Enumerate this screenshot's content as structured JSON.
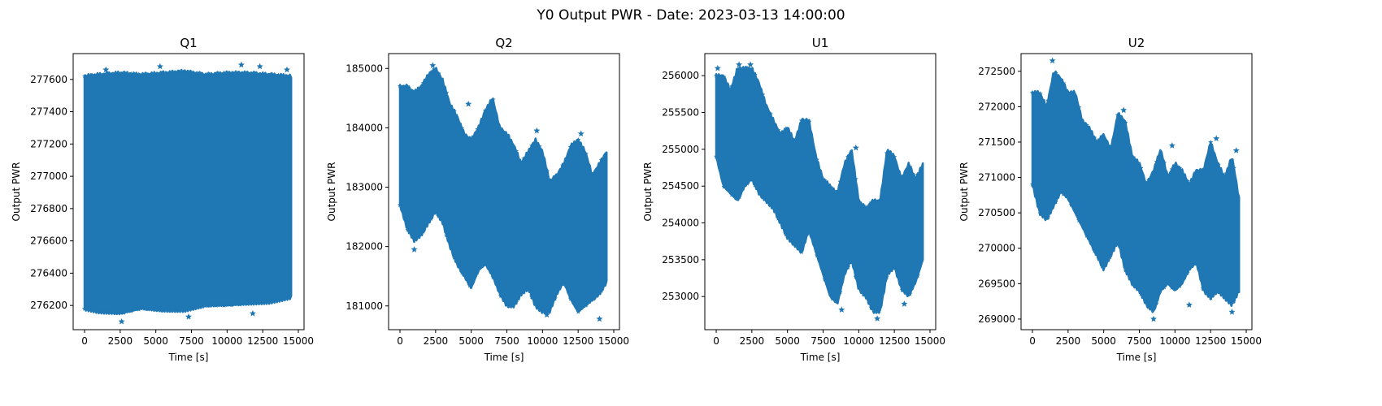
{
  "figure": {
    "suptitle": "Y0 Output PWR - Date: 2023-03-13 14:00:00",
    "series_color": "#1f77b4"
  },
  "chart_data": [
    {
      "type": "scatter",
      "marker": "star",
      "title": "Q1",
      "xlabel": "Time [s]",
      "ylabel": "Output PWR",
      "xlim": [
        -800,
        15400
      ],
      "ylim": [
        276050,
        277760
      ],
      "xticks": [
        0,
        2500,
        5000,
        7500,
        10000,
        12500,
        15000
      ],
      "yticks": [
        276200,
        276400,
        276600,
        276800,
        277000,
        277200,
        277400,
        277600
      ],
      "x_range": [
        0,
        14500
      ],
      "envelope": {
        "t": [
          0,
          1000,
          2500,
          4000,
          5500,
          7000,
          8500,
          10000,
          11500,
          13000,
          14500
        ],
        "upper": [
          277620,
          277630,
          277640,
          277630,
          277640,
          277650,
          277630,
          277640,
          277640,
          277630,
          277620
        ],
        "lower": [
          276180,
          276160,
          276150,
          276180,
          276170,
          276170,
          276200,
          276200,
          276210,
          276220,
          276250
        ]
      },
      "outliers_high": [
        [
          1500,
          277660
        ],
        [
          5300,
          277680
        ],
        [
          11000,
          277690
        ],
        [
          12300,
          277680
        ],
        [
          14200,
          277660
        ]
      ],
      "outliers_low": [
        [
          2600,
          276100
        ],
        [
          7300,
          276130
        ],
        [
          11800,
          276150
        ]
      ]
    },
    {
      "type": "scatter",
      "marker": "star",
      "title": "Q2",
      "xlabel": "Time [s]",
      "ylabel": "Output PWR",
      "xlim": [
        -800,
        15400
      ],
      "ylim": [
        180600,
        185250
      ],
      "xticks": [
        0,
        2500,
        5000,
        7500,
        10000,
        12500,
        15000
      ],
      "yticks": [
        181000,
        182000,
        183000,
        184000,
        185000
      ],
      "x_range": [
        0,
        14500
      ],
      "envelope": {
        "t": [
          0,
          500,
          1000,
          1500,
          2000,
          2500,
          3000,
          3500,
          4000,
          4500,
          5000,
          5500,
          6000,
          6500,
          7000,
          7500,
          8000,
          8500,
          9000,
          9500,
          10000,
          10500,
          11000,
          11500,
          12000,
          12500,
          13000,
          13500,
          14000,
          14500
        ],
        "upper": [
          184700,
          184700,
          184600,
          184700,
          184900,
          185000,
          184800,
          184400,
          184200,
          183900,
          183800,
          184000,
          184300,
          184500,
          184000,
          183900,
          183700,
          183400,
          183600,
          183800,
          183600,
          183100,
          183200,
          183400,
          183700,
          183800,
          183600,
          183200,
          183400,
          183600
        ],
        "lower": [
          182700,
          182300,
          182100,
          182200,
          182400,
          182600,
          182400,
          182000,
          181700,
          181500,
          181300,
          181600,
          181700,
          181500,
          181200,
          181000,
          181000,
          181200,
          181300,
          181000,
          180900,
          180900,
          181200,
          181400,
          181100,
          180900,
          181000,
          181100,
          181200,
          181400
        ]
      },
      "outliers_high": [
        [
          2300,
          185050
        ],
        [
          4800,
          184400
        ],
        [
          9600,
          183950
        ],
        [
          12700,
          183900
        ]
      ],
      "outliers_low": [
        [
          1000,
          181950
        ],
        [
          10300,
          180850
        ],
        [
          14000,
          180780
        ]
      ]
    },
    {
      "type": "scatter",
      "marker": "star",
      "title": "U1",
      "xlabel": "Time [s]",
      "ylabel": "Output PWR",
      "xlim": [
        -800,
        15400
      ],
      "ylim": [
        252550,
        256300
      ],
      "xticks": [
        0,
        2500,
        5000,
        7500,
        10000,
        12500,
        15000
      ],
      "yticks": [
        253000,
        253500,
        254000,
        254500,
        255000,
        255500,
        256000
      ],
      "x_range": [
        0,
        14500
      ],
      "envelope": {
        "t": [
          0,
          500,
          1000,
          1500,
          2000,
          2500,
          3000,
          3500,
          4000,
          4500,
          5000,
          5500,
          6000,
          6500,
          7000,
          7500,
          8000,
          8500,
          9000,
          9500,
          10000,
          10500,
          11000,
          11500,
          12000,
          12500,
          13000,
          13500,
          14000,
          14500
        ],
        "upper": [
          256000,
          256000,
          255800,
          256100,
          256100,
          256100,
          255900,
          255600,
          255400,
          255200,
          255300,
          255100,
          255400,
          255400,
          254900,
          254600,
          254500,
          254400,
          254800,
          255000,
          254300,
          254200,
          254300,
          254300,
          255000,
          254900,
          254600,
          254800,
          254600,
          254800
        ],
        "lower": [
          254900,
          254500,
          254400,
          254300,
          254500,
          254600,
          254400,
          254300,
          254200,
          254000,
          253800,
          253700,
          253600,
          253900,
          253600,
          253300,
          253000,
          252900,
          253300,
          253500,
          253100,
          253000,
          252800,
          252800,
          253300,
          253400,
          253100,
          253000,
          253200,
          253500
        ]
      },
      "outliers_high": [
        [
          100,
          256100
        ],
        [
          1600,
          256150
        ],
        [
          2400,
          256150
        ],
        [
          9800,
          255020
        ]
      ],
      "outliers_low": [
        [
          8800,
          252820
        ],
        [
          11300,
          252700
        ],
        [
          13200,
          252900
        ]
      ]
    },
    {
      "type": "scatter",
      "marker": "star",
      "title": "U2",
      "xlabel": "Time [s]",
      "ylabel": "Output PWR",
      "xlim": [
        -800,
        15400
      ],
      "ylim": [
        268850,
        272750
      ],
      "xticks": [
        0,
        2500,
        5000,
        7500,
        10000,
        12500,
        15000
      ],
      "yticks": [
        269000,
        269500,
        270000,
        270500,
        271000,
        271500,
        272000,
        272500
      ],
      "x_range": [
        0,
        14500
      ],
      "envelope": {
        "t": [
          0,
          500,
          1000,
          1500,
          2000,
          2500,
          3000,
          3500,
          4000,
          4500,
          5000,
          5500,
          6000,
          6500,
          7000,
          7500,
          8000,
          8500,
          9000,
          9500,
          10000,
          10500,
          11000,
          11500,
          12000,
          12500,
          13000,
          13500,
          14000,
          14500
        ],
        "upper": [
          272200,
          272200,
          272000,
          272500,
          272400,
          272200,
          272200,
          271800,
          271700,
          271500,
          271600,
          271400,
          271900,
          271800,
          271300,
          271200,
          270900,
          271100,
          271400,
          271000,
          271200,
          271100,
          270900,
          271100,
          271100,
          271500,
          271200,
          271000,
          271300,
          270700
        ],
        "lower": [
          270900,
          270500,
          270400,
          270600,
          270800,
          270700,
          270500,
          270300,
          270100,
          269900,
          269700,
          269900,
          270100,
          269700,
          269500,
          269400,
          269200,
          269100,
          269400,
          269500,
          269400,
          269500,
          269700,
          269800,
          269400,
          269300,
          269400,
          269300,
          269200,
          269400
        ]
      },
      "outliers_high": [
        [
          1400,
          272650
        ],
        [
          6400,
          271950
        ],
        [
          9800,
          271450
        ],
        [
          12900,
          271550
        ],
        [
          14300,
          271380
        ]
      ],
      "outliers_low": [
        [
          8500,
          269000
        ],
        [
          11000,
          269200
        ],
        [
          14000,
          269100
        ]
      ]
    }
  ]
}
